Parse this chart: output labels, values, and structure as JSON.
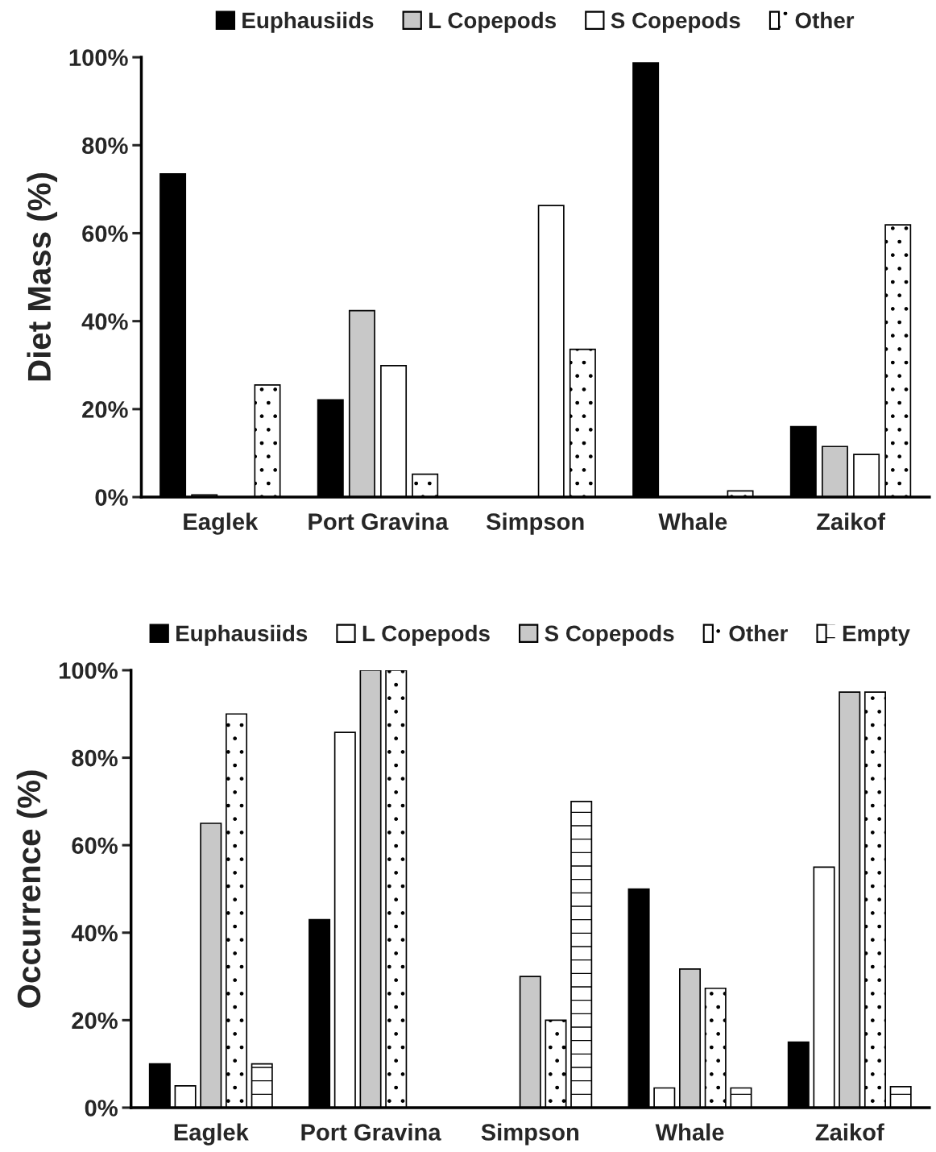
{
  "chart_data": [
    {
      "type": "bar",
      "ylabel": "Diet Mass (%)",
      "categories": [
        "Eaglek",
        "Port Gravina",
        "Simpson",
        "Whale",
        "Zaikof"
      ],
      "ylim": [
        0,
        100
      ],
      "yticks": [
        {
          "value": 0,
          "label": "0%"
        },
        {
          "value": 20,
          "label": "20%"
        },
        {
          "value": 40,
          "label": "40%"
        },
        {
          "value": 60,
          "label": "60%"
        },
        {
          "value": 80,
          "label": "80%"
        },
        {
          "value": 100,
          "label": "100%"
        }
      ],
      "legend": "top",
      "grid": false,
      "series": [
        {
          "name": "Euphausiids",
          "color": "#000000",
          "values": [
            73.5,
            22.1,
            0,
            98.7,
            16.0
          ]
        },
        {
          "name": "L Copepods",
          "color": "#c8c8c8",
          "values": [
            0.5,
            42.4,
            0,
            0,
            11.5
          ]
        },
        {
          "name": "S Copepods",
          "color": "#ffffff",
          "values": [
            0,
            29.9,
            66.3,
            0,
            9.7
          ]
        },
        {
          "name": "Other",
          "color": "#ffffff",
          "values": [
            25.5,
            5.2,
            33.6,
            1.4,
            61.9
          ]
        }
      ]
    },
    {
      "type": "bar",
      "ylabel": "Occurrence (%)",
      "categories": [
        "Eaglek",
        "Port Gravina",
        "Simpson",
        "Whale",
        "Zaikof"
      ],
      "ylim": [
        0,
        100
      ],
      "yticks": [
        {
          "value": 0,
          "label": "0%"
        },
        {
          "value": 20,
          "label": "20%"
        },
        {
          "value": 40,
          "label": "40%"
        },
        {
          "value": 60,
          "label": "60%"
        },
        {
          "value": 80,
          "label": "80%"
        },
        {
          "value": 100,
          "label": "100%"
        }
      ],
      "legend": "top",
      "grid": false,
      "series": [
        {
          "name": "Euphausiids",
          "color": "#000000",
          "values": [
            10,
            43,
            0,
            50,
            15
          ]
        },
        {
          "name": "L Copepods",
          "color": "#ffffff",
          "values": [
            5,
            85.8,
            0,
            4.5,
            55
          ]
        },
        {
          "name": "S Copepods",
          "color": "#c8c8c8",
          "values": [
            65,
            100,
            30,
            31.7,
            95
          ]
        },
        {
          "name": "Other",
          "color": "#ffffff",
          "values": [
            90,
            100,
            20,
            27.3,
            95
          ]
        },
        {
          "name": "Empty",
          "color": "#ffffff",
          "values": [
            10,
            0,
            70,
            4.5,
            4.8
          ]
        }
      ]
    }
  ]
}
